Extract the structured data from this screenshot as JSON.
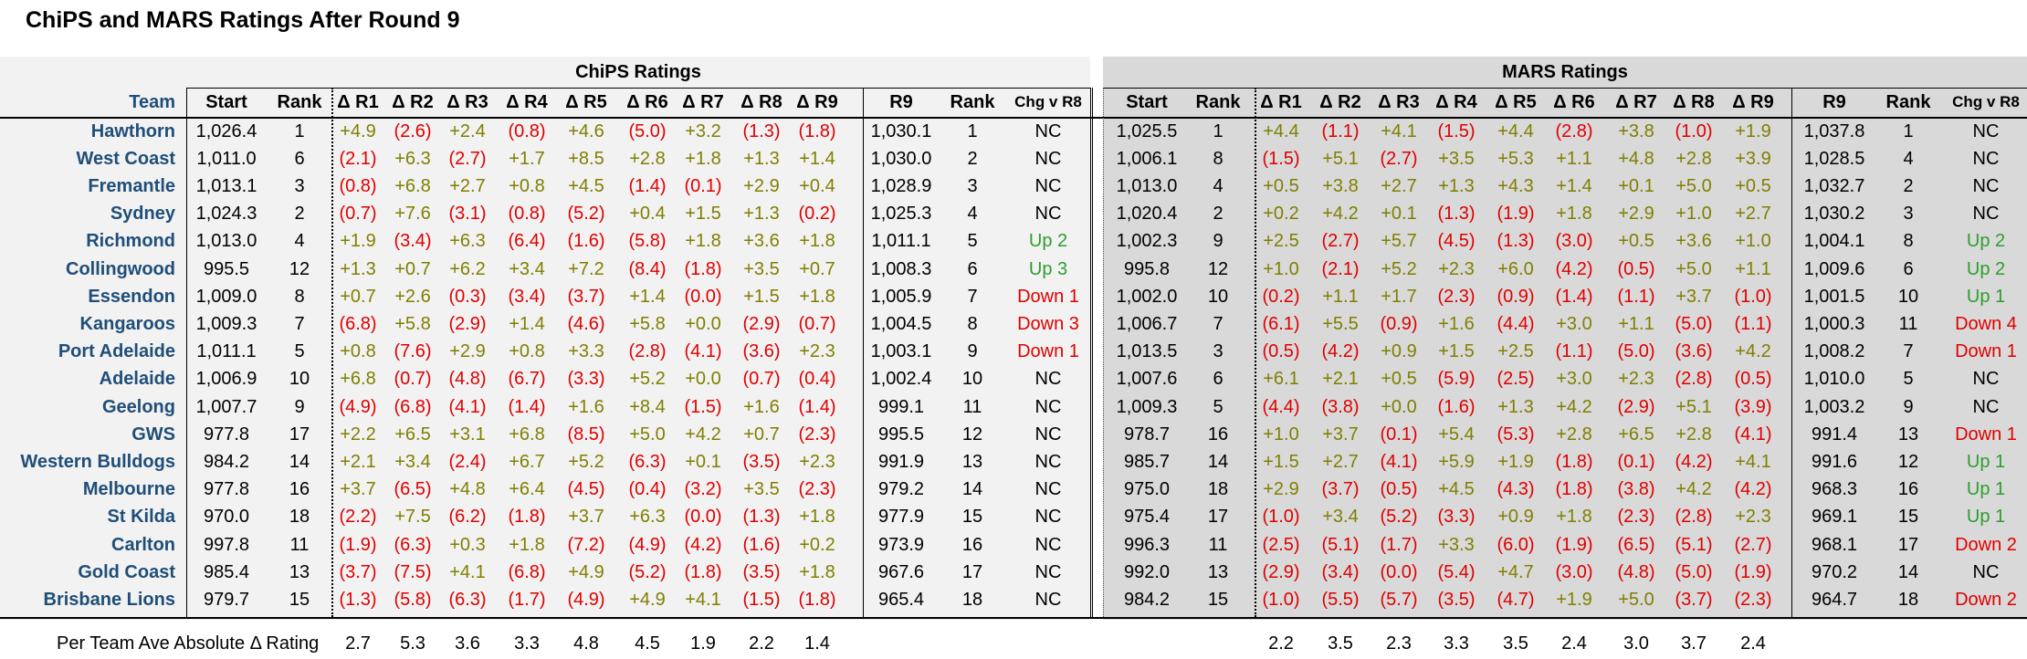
{
  "title": "ChiPS and MARS Ratings After Round 9",
  "groups": {
    "chips": "ChiPS Ratings",
    "mars": "MARS Ratings"
  },
  "headers": {
    "team": "Team",
    "chips": [
      "Start",
      "Rank",
      "Δ R1",
      "Δ R2",
      "Δ R3",
      "Δ R4",
      "Δ R5",
      "Δ R6",
      "Δ R7",
      "Δ R8",
      "Δ R9",
      "R9",
      "Rank",
      "Chg v R8"
    ],
    "mars": [
      "Start",
      "Rank",
      "Δ R1",
      "Δ R2",
      "Δ R3",
      "Δ R4",
      "Δ R5",
      "Δ R6",
      "Δ R7",
      "Δ R8",
      "Δ R9",
      "R9",
      "Rank",
      "Chg v R8"
    ]
  },
  "rows": [
    {
      "team": "Hawthorn",
      "chips": [
        "1,026.4",
        "1",
        "+4.9",
        "(2.6)",
        "+2.4",
        "(0.8)",
        "+4.6",
        "(5.0)",
        "+3.2",
        "(1.3)",
        "(1.8)",
        "1,030.1",
        "1",
        "NC"
      ],
      "mars": [
        "1,025.5",
        "1",
        "+4.4",
        "(1.1)",
        "+4.1",
        "(1.5)",
        "+4.4",
        "(2.8)",
        "+3.8",
        "(1.0)",
        "+1.9",
        "1,037.8",
        "1",
        "NC"
      ]
    },
    {
      "team": "West Coast",
      "chips": [
        "1,011.0",
        "6",
        "(2.1)",
        "+6.3",
        "(2.7)",
        "+1.7",
        "+8.5",
        "+2.8",
        "+1.8",
        "+1.3",
        "+1.4",
        "1,030.0",
        "2",
        "NC"
      ],
      "mars": [
        "1,006.1",
        "8",
        "(1.5)",
        "+5.1",
        "(2.7)",
        "+3.5",
        "+5.3",
        "+1.1",
        "+4.8",
        "+2.8",
        "+3.9",
        "1,028.5",
        "4",
        "NC"
      ]
    },
    {
      "team": "Fremantle",
      "chips": [
        "1,013.1",
        "3",
        "(0.8)",
        "+6.8",
        "+2.7",
        "+0.8",
        "+4.5",
        "(1.4)",
        "(0.1)",
        "+2.9",
        "+0.4",
        "1,028.9",
        "3",
        "NC"
      ],
      "mars": [
        "1,013.0",
        "4",
        "+0.5",
        "+3.8",
        "+2.7",
        "+1.3",
        "+4.3",
        "+1.4",
        "+0.1",
        "+5.0",
        "+0.5",
        "1,032.7",
        "2",
        "NC"
      ]
    },
    {
      "team": "Sydney",
      "chips": [
        "1,024.3",
        "2",
        "(0.7)",
        "+7.6",
        "(3.1)",
        "(0.8)",
        "(5.2)",
        "+0.4",
        "+1.5",
        "+1.3",
        "(0.2)",
        "1,025.3",
        "4",
        "NC"
      ],
      "mars": [
        "1,020.4",
        "2",
        "+0.2",
        "+4.2",
        "+0.1",
        "(1.3)",
        "(1.9)",
        "+1.8",
        "+2.9",
        "+1.0",
        "+2.7",
        "1,030.2",
        "3",
        "NC"
      ]
    },
    {
      "team": "Richmond",
      "chips": [
        "1,013.0",
        "4",
        "+1.9",
        "(3.4)",
        "+6.3",
        "(6.4)",
        "(1.6)",
        "(5.8)",
        "+1.8",
        "+3.6",
        "+1.8",
        "1,011.1",
        "5",
        "Up 2"
      ],
      "mars": [
        "1,002.3",
        "9",
        "+2.5",
        "(2.7)",
        "+5.7",
        "(4.5)",
        "(1.3)",
        "(3.0)",
        "+0.5",
        "+3.6",
        "+1.0",
        "1,004.1",
        "8",
        "Up 2"
      ]
    },
    {
      "team": "Collingwood",
      "chips": [
        "995.5",
        "12",
        "+1.3",
        "+0.7",
        "+6.2",
        "+3.4",
        "+7.2",
        "(8.4)",
        "(1.8)",
        "+3.5",
        "+0.7",
        "1,008.3",
        "6",
        "Up 3"
      ],
      "mars": [
        "995.8",
        "12",
        "+1.0",
        "(2.1)",
        "+5.2",
        "+2.3",
        "+6.0",
        "(4.2)",
        "(0.5)",
        "+5.0",
        "+1.1",
        "1,009.6",
        "6",
        "Up 2"
      ]
    },
    {
      "team": "Essendon",
      "chips": [
        "1,009.0",
        "8",
        "+0.7",
        "+2.6",
        "(0.3)",
        "(3.4)",
        "(3.7)",
        "+1.4",
        "(0.0)",
        "+1.5",
        "+1.8",
        "1,005.9",
        "7",
        "Down 1"
      ],
      "mars": [
        "1,002.0",
        "10",
        "(0.2)",
        "+1.1",
        "+1.7",
        "(2.3)",
        "(0.9)",
        "(1.4)",
        "(1.1)",
        "+3.7",
        "(1.0)",
        "1,001.5",
        "10",
        "Up 1"
      ]
    },
    {
      "team": "Kangaroos",
      "chips": [
        "1,009.3",
        "7",
        "(6.8)",
        "+5.8",
        "(2.9)",
        "+1.4",
        "(4.6)",
        "+5.8",
        "+0.0",
        "(2.9)",
        "(0.7)",
        "1,004.5",
        "8",
        "Down 3"
      ],
      "mars": [
        "1,006.7",
        "7",
        "(6.1)",
        "+5.5",
        "(0.9)",
        "+1.6",
        "(4.4)",
        "+3.0",
        "+1.1",
        "(5.0)",
        "(1.1)",
        "1,000.3",
        "11",
        "Down 4"
      ]
    },
    {
      "team": "Port Adelaide",
      "chips": [
        "1,011.1",
        "5",
        "+0.8",
        "(7.6)",
        "+2.9",
        "+0.8",
        "+3.3",
        "(2.8)",
        "(4.1)",
        "(3.6)",
        "+2.3",
        "1,003.1",
        "9",
        "Down 1"
      ],
      "mars": [
        "1,013.5",
        "3",
        "(0.5)",
        "(4.2)",
        "+0.9",
        "+1.5",
        "+2.5",
        "(1.1)",
        "(5.0)",
        "(3.6)",
        "+4.2",
        "1,008.2",
        "7",
        "Down 1"
      ]
    },
    {
      "team": "Adelaide",
      "chips": [
        "1,006.9",
        "10",
        "+6.8",
        "(0.7)",
        "(4.8)",
        "(6.7)",
        "(3.3)",
        "+5.2",
        "+0.0",
        "(0.7)",
        "(0.4)",
        "1,002.4",
        "10",
        "NC"
      ],
      "mars": [
        "1,007.6",
        "6",
        "+6.1",
        "+2.1",
        "+0.5",
        "(5.9)",
        "(2.5)",
        "+3.0",
        "+2.3",
        "(2.8)",
        "(0.5)",
        "1,010.0",
        "5",
        "NC"
      ]
    },
    {
      "team": "Geelong",
      "chips": [
        "1,007.7",
        "9",
        "(4.9)",
        "(6.8)",
        "(4.1)",
        "(1.4)",
        "+1.6",
        "+8.4",
        "(1.5)",
        "+1.6",
        "(1.4)",
        "999.1",
        "11",
        "NC"
      ],
      "mars": [
        "1,009.3",
        "5",
        "(4.4)",
        "(3.8)",
        "+0.0",
        "(1.6)",
        "+1.3",
        "+4.2",
        "(2.9)",
        "+5.1",
        "(3.9)",
        "1,003.2",
        "9",
        "NC"
      ]
    },
    {
      "team": "GWS",
      "chips": [
        "977.8",
        "17",
        "+2.2",
        "+6.5",
        "+3.1",
        "+6.8",
        "(8.5)",
        "+5.0",
        "+4.2",
        "+0.7",
        "(2.3)",
        "995.5",
        "12",
        "NC"
      ],
      "mars": [
        "978.7",
        "16",
        "+1.0",
        "+3.7",
        "(0.1)",
        "+5.4",
        "(5.3)",
        "+2.8",
        "+6.5",
        "+2.8",
        "(4.1)",
        "991.4",
        "13",
        "Down 1"
      ]
    },
    {
      "team": "Western Bulldogs",
      "chips": [
        "984.2",
        "14",
        "+2.1",
        "+3.4",
        "(2.4)",
        "+6.7",
        "+5.2",
        "(6.3)",
        "+0.1",
        "(3.5)",
        "+2.3",
        "991.9",
        "13",
        "NC"
      ],
      "mars": [
        "985.7",
        "14",
        "+1.5",
        "+2.7",
        "(4.1)",
        "+5.9",
        "+1.9",
        "(1.8)",
        "(0.1)",
        "(4.2)",
        "+4.1",
        "991.6",
        "12",
        "Up 1"
      ]
    },
    {
      "team": "Melbourne",
      "chips": [
        "977.8",
        "16",
        "+3.7",
        "(6.5)",
        "+4.8",
        "+6.4",
        "(4.5)",
        "(0.4)",
        "(3.2)",
        "+3.5",
        "(2.3)",
        "979.2",
        "14",
        "NC"
      ],
      "mars": [
        "975.0",
        "18",
        "+2.9",
        "(3.7)",
        "(0.5)",
        "+4.5",
        "(4.3)",
        "(1.8)",
        "(3.8)",
        "+4.2",
        "(4.2)",
        "968.3",
        "16",
        "Up 1"
      ]
    },
    {
      "team": "St Kilda",
      "chips": [
        "970.0",
        "18",
        "(2.2)",
        "+7.5",
        "(6.2)",
        "(1.8)",
        "+3.7",
        "+6.3",
        "(0.0)",
        "(1.3)",
        "+1.8",
        "977.9",
        "15",
        "NC"
      ],
      "mars": [
        "975.4",
        "17",
        "(1.0)",
        "+3.4",
        "(5.2)",
        "(3.3)",
        "+0.9",
        "+1.8",
        "(2.3)",
        "(2.8)",
        "+2.3",
        "969.1",
        "15",
        "Up 1"
      ]
    },
    {
      "team": "Carlton",
      "chips": [
        "997.8",
        "11",
        "(1.9)",
        "(6.3)",
        "+0.3",
        "+1.8",
        "(7.2)",
        "(4.9)",
        "(4.2)",
        "(1.6)",
        "+0.2",
        "973.9",
        "16",
        "NC"
      ],
      "mars": [
        "996.3",
        "11",
        "(2.5)",
        "(5.1)",
        "(1.7)",
        "+3.3",
        "(6.0)",
        "(1.9)",
        "(6.5)",
        "(5.1)",
        "(2.7)",
        "968.1",
        "17",
        "Down 2"
      ]
    },
    {
      "team": "Gold Coast",
      "chips": [
        "985.4",
        "13",
        "(3.7)",
        "(7.5)",
        "+4.1",
        "(6.8)",
        "+4.9",
        "(5.2)",
        "(1.8)",
        "(3.5)",
        "+1.8",
        "967.6",
        "17",
        "NC"
      ],
      "mars": [
        "992.0",
        "13",
        "(2.9)",
        "(3.4)",
        "(0.0)",
        "(5.4)",
        "+4.7",
        "(3.0)",
        "(4.8)",
        "(5.0)",
        "(1.9)",
        "970.2",
        "14",
        "NC"
      ]
    },
    {
      "team": "Brisbane Lions",
      "chips": [
        "979.7",
        "15",
        "(1.3)",
        "(5.8)",
        "(6.3)",
        "(1.7)",
        "(4.9)",
        "+4.9",
        "+4.1",
        "(1.5)",
        "(1.8)",
        "965.4",
        "18",
        "NC"
      ],
      "mars": [
        "984.2",
        "15",
        "(1.0)",
        "(5.5)",
        "(5.7)",
        "(3.5)",
        "(4.7)",
        "+1.9",
        "+5.0",
        "(3.7)",
        "(2.3)",
        "964.7",
        "18",
        "Down 2"
      ]
    }
  ],
  "averages": {
    "label": "Per Team Ave Absolute Δ Rating",
    "chips": [
      "2.7",
      "5.3",
      "3.6",
      "3.3",
      "4.8",
      "4.5",
      "1.9",
      "2.2",
      "1.4"
    ],
    "mars": [
      "2.2",
      "3.5",
      "2.3",
      "3.3",
      "3.5",
      "2.4",
      "3.0",
      "3.7",
      "2.4"
    ]
  },
  "colors": {
    "team_text": "#1f4e79",
    "positive": "#7f7f00",
    "negative": "#e00000",
    "up": "#2e9d2e",
    "down": "#e00000",
    "chips_bg": "#f2f2f2",
    "mars_bg": "#d9d9d9"
  }
}
